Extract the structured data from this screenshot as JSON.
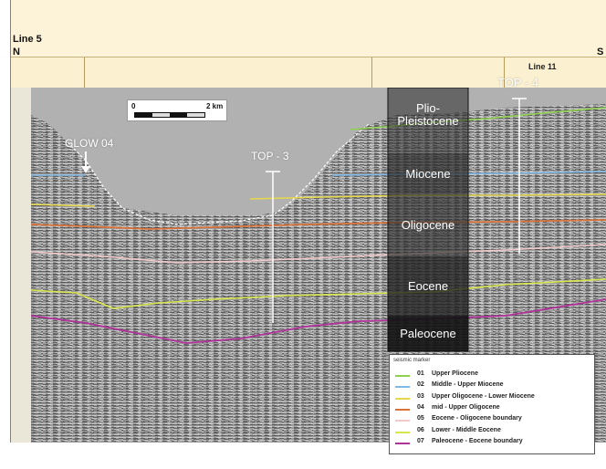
{
  "header": {
    "line_title": "Line 5",
    "north": "N",
    "south": "S",
    "crossline": "Line 11"
  },
  "scale": {
    "start": "0",
    "end": "2 km"
  },
  "annotations": {
    "glow": "GLOW 04",
    "top3": "TOP - 3",
    "top4": "TOP - 4"
  },
  "stratigraphy": [
    {
      "label": "Plio-\nPleistocene"
    },
    {
      "label": "Miocene"
    },
    {
      "label": "Oligocene"
    },
    {
      "label": "Eocene"
    },
    {
      "label": "Paleocene"
    }
  ],
  "legend": {
    "title": "seismic marker",
    "items": [
      {
        "num": "01",
        "name": "Upper Pliocene",
        "color": "#8fd14f"
      },
      {
        "num": "02",
        "name": "Middle - Upper Miocene",
        "color": "#7fb8e6"
      },
      {
        "num": "03",
        "name": "Upper Oligocene - Lower Miocene",
        "color": "#e6d84a"
      },
      {
        "num": "04",
        "name": "mid - Upper Oligocene",
        "color": "#d9733a"
      },
      {
        "num": "05",
        "name": "Eocene - Oligocene boundary",
        "color": "#f2c9c9"
      },
      {
        "num": "06",
        "name": "Lower - Middle Eocene",
        "color": "#d8e64a"
      },
      {
        "num": "07",
        "name": "Paleocene - Eocene boundary",
        "color": "#b0329a"
      }
    ]
  }
}
